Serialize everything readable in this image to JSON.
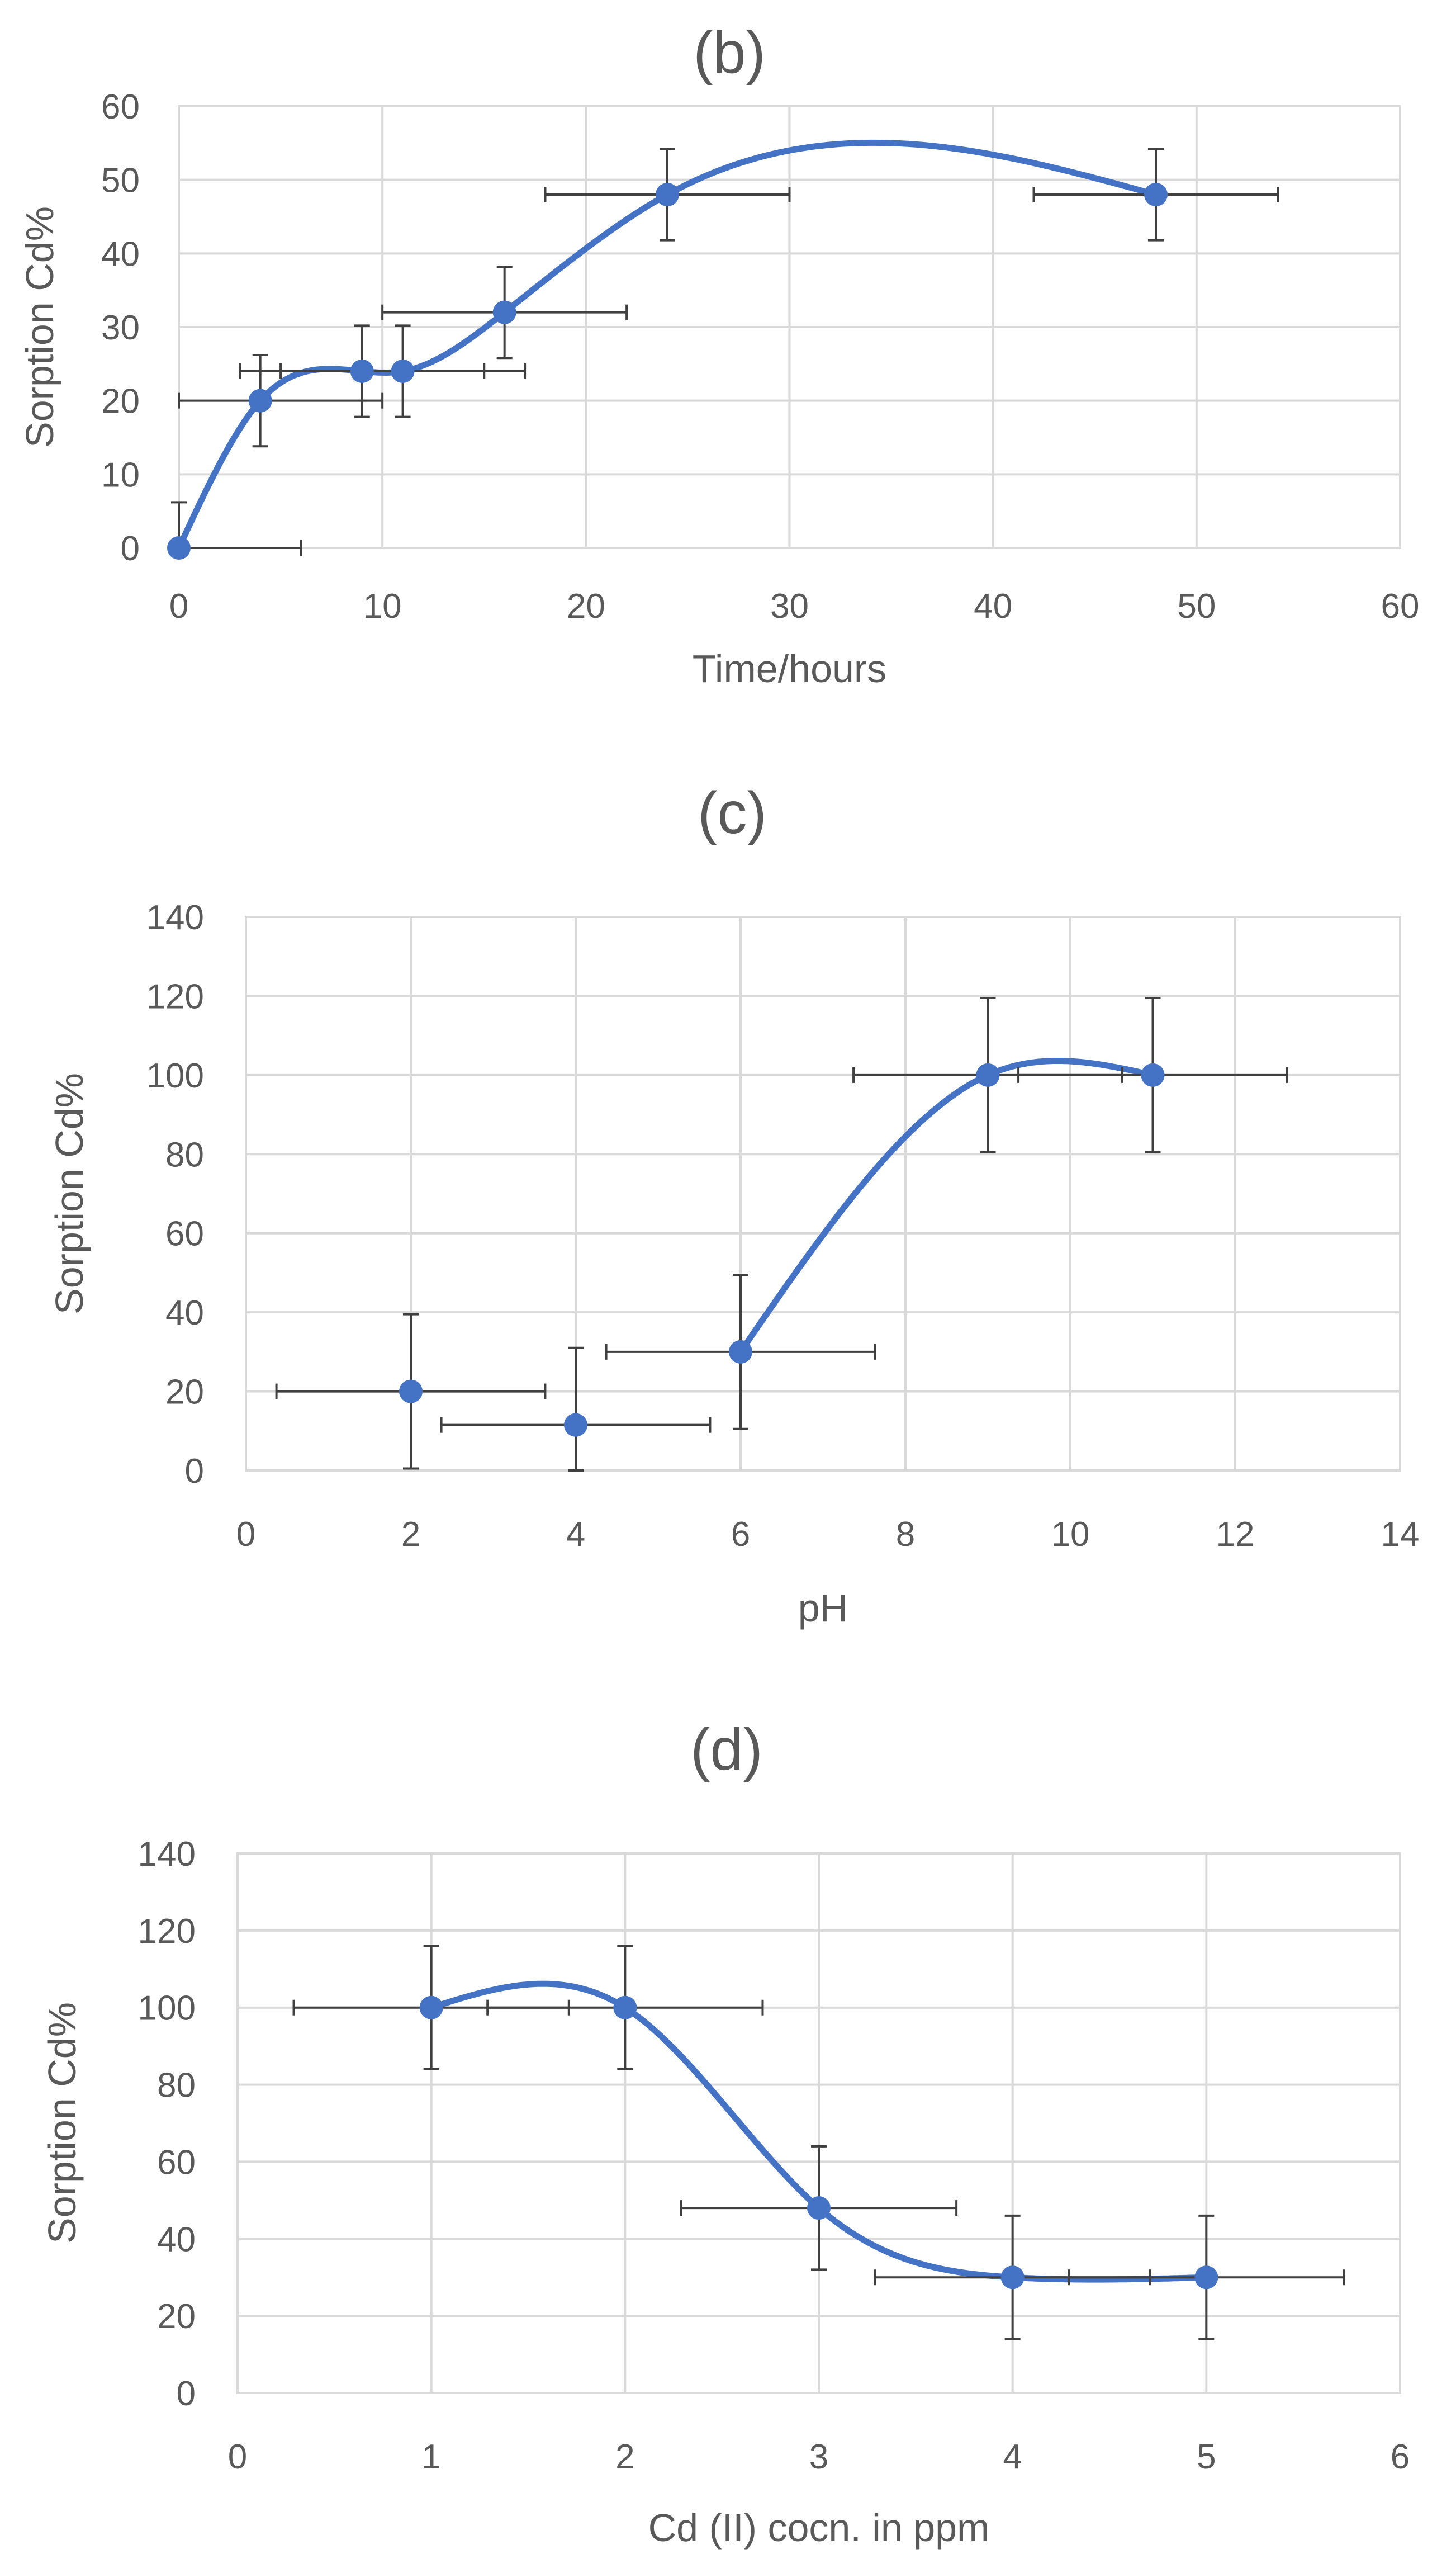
{
  "chart_data": [
    {
      "type": "scatter",
      "title": "(b)",
      "xlabel": "Time/hours",
      "ylabel": "Sorption  Cd%",
      "xlim": [
        0,
        60
      ],
      "ylim": [
        0,
        60
      ],
      "x_ticks": [
        0,
        10,
        20,
        30,
        40,
        50,
        60
      ],
      "y_ticks": [
        0,
        10,
        20,
        30,
        40,
        50,
        60
      ],
      "grid": true,
      "smoothed_line": true,
      "color": "#4472c4",
      "x": [
        0,
        4,
        9,
        11,
        16,
        24,
        48
      ],
      "y": [
        0,
        20,
        24,
        24,
        32,
        48,
        48
      ],
      "x_error": 6,
      "y_error": 6.2
    },
    {
      "type": "scatter",
      "title": "(c)",
      "xlabel": "pH",
      "ylabel": "Sorption Cd%",
      "xlim": [
        0,
        14
      ],
      "ylim": [
        0,
        140
      ],
      "x_ticks": [
        0,
        2,
        4,
        6,
        8,
        10,
        12,
        14
      ],
      "y_ticks": [
        0,
        20,
        40,
        60,
        80,
        100,
        120,
        140
      ],
      "grid": true,
      "smoothed_line": true,
      "line_starts_at_point": 2,
      "color": "#4472c4",
      "x": [
        2,
        4,
        6,
        9,
        11
      ],
      "y": [
        20,
        11.5,
        30,
        100,
        100
      ],
      "x_error": 1.63,
      "y_error": 19.5
    },
    {
      "type": "scatter",
      "title": "(d)",
      "xlabel": "Cd (II) cocn. in ppm",
      "ylabel": "Sorption  Cd%",
      "xlim": [
        0,
        6
      ],
      "ylim": [
        0,
        140
      ],
      "x_ticks": [
        0,
        1,
        2,
        3,
        4,
        5,
        6
      ],
      "y_ticks": [
        0,
        20,
        40,
        60,
        80,
        100,
        120,
        140
      ],
      "grid": true,
      "smoothed_line": true,
      "color": "#4472c4",
      "x": [
        1,
        2,
        3,
        4,
        5
      ],
      "y": [
        100,
        100,
        48,
        30,
        30
      ],
      "x_error": 0.71,
      "y_error": 16
    }
  ]
}
